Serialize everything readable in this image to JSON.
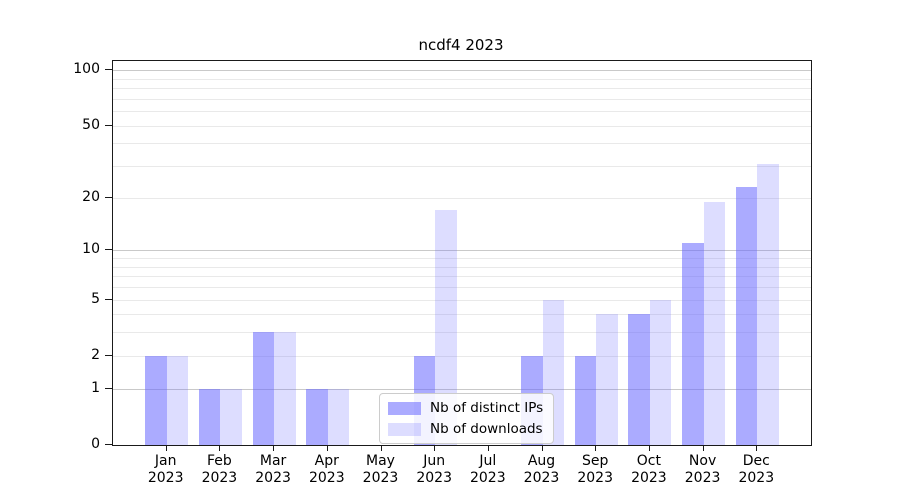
{
  "chart_data": {
    "type": "bar",
    "title": "ncdf4 2023",
    "categories": [
      "Jan",
      "Feb",
      "Mar",
      "Apr",
      "May",
      "Jun",
      "Jul",
      "Aug",
      "Sep",
      "Oct",
      "Nov",
      "Dec"
    ],
    "year_label": "2023",
    "series": [
      {
        "name": "Nb of distinct IPs",
        "values": [
          2,
          1,
          3,
          1,
          0,
          2,
          0,
          2,
          2,
          4,
          11,
          23
        ],
        "color": "rgba(102,102,255,0.55)"
      },
      {
        "name": "Nb of downloads",
        "values": [
          2,
          1,
          3,
          1,
          0,
          17,
          0,
          5,
          4,
          5,
          19,
          31
        ],
        "color": "rgba(102,102,255,0.22)"
      }
    ],
    "yscale": "log1p",
    "ylim": [
      0,
      112
    ],
    "yticks": [
      0,
      1,
      2,
      5,
      10,
      20,
      50,
      100
    ],
    "major_gridlines": [
      1,
      10,
      100
    ],
    "minor_gridlines": [
      2,
      3,
      4,
      5,
      6,
      7,
      8,
      9,
      20,
      30,
      40,
      50,
      60,
      70,
      80,
      90
    ],
    "grid_color_major": "#c9c9c9",
    "grid_color_minor": "#e9e9e9",
    "legend_position": "lower-center",
    "grid": true
  }
}
